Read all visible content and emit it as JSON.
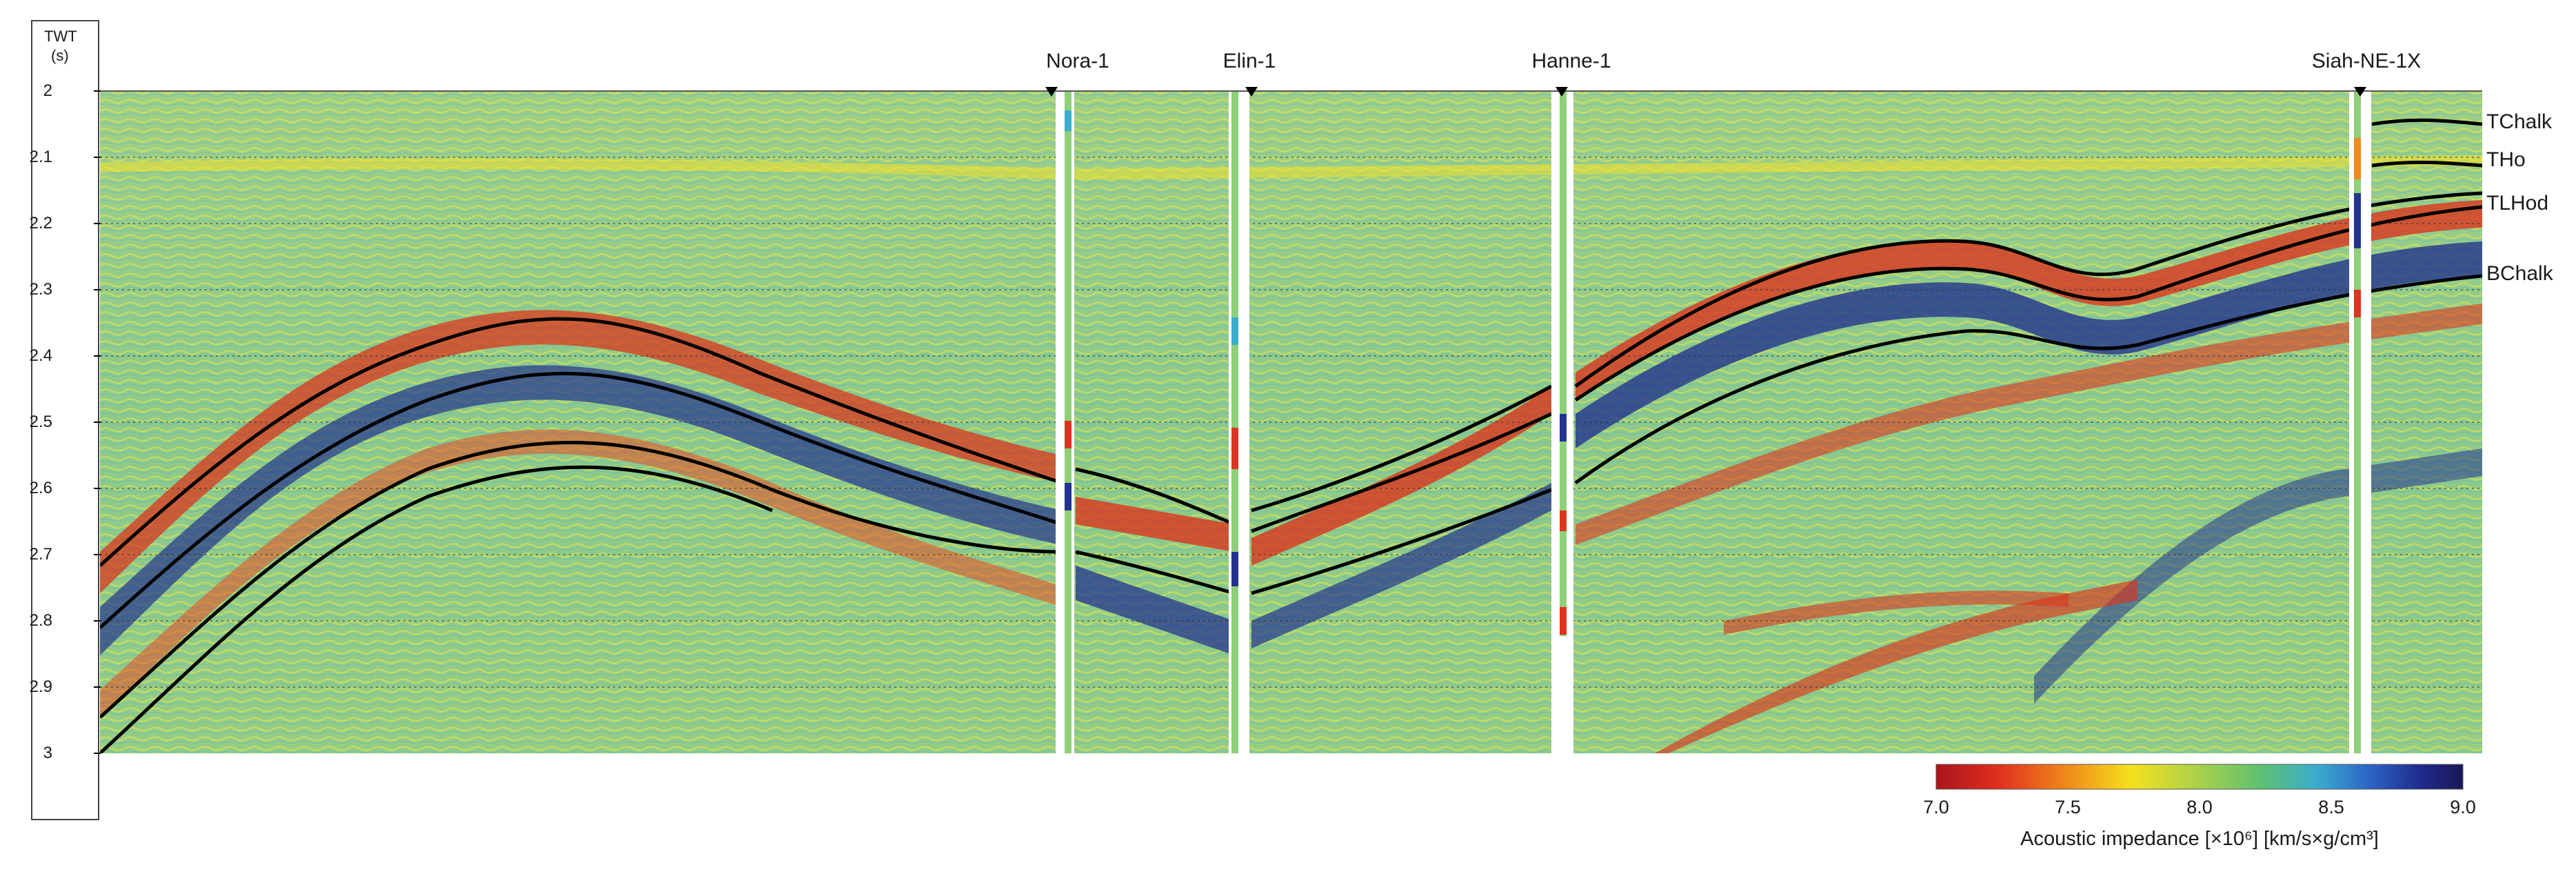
{
  "axis": {
    "title": "TWT",
    "unit": "(s)",
    "ticks": [
      "2",
      "2.1",
      "2.2",
      "2.3",
      "2.4",
      "2.5",
      "2.6",
      "2.7",
      "2.8",
      "2.9",
      "3"
    ],
    "range": [
      2.0,
      3.0
    ]
  },
  "wells": [
    {
      "name": "Nora-1"
    },
    {
      "name": "Elin-1"
    },
    {
      "name": "Hanne-1"
    },
    {
      "name": "Siah-NE-1X"
    }
  ],
  "horizons": [
    {
      "name": "TChalk"
    },
    {
      "name": "THo"
    },
    {
      "name": "TLHod"
    },
    {
      "name": "BChalk"
    }
  ],
  "colorbar": {
    "label": "Acoustic impedance [×10⁶] [km/s×g/cm³]",
    "ticks": [
      "7.0",
      "7.5",
      "8.0",
      "8.5",
      "9.0"
    ],
    "min": 7.0,
    "max": 9.0,
    "colors": [
      "#a8151b",
      "#e0301e",
      "#f08a1c",
      "#f5e11e",
      "#a8d14a",
      "#5cbf74",
      "#3aaecc",
      "#2d66c7",
      "#1e2a8c",
      "#1a1757"
    ]
  }
}
